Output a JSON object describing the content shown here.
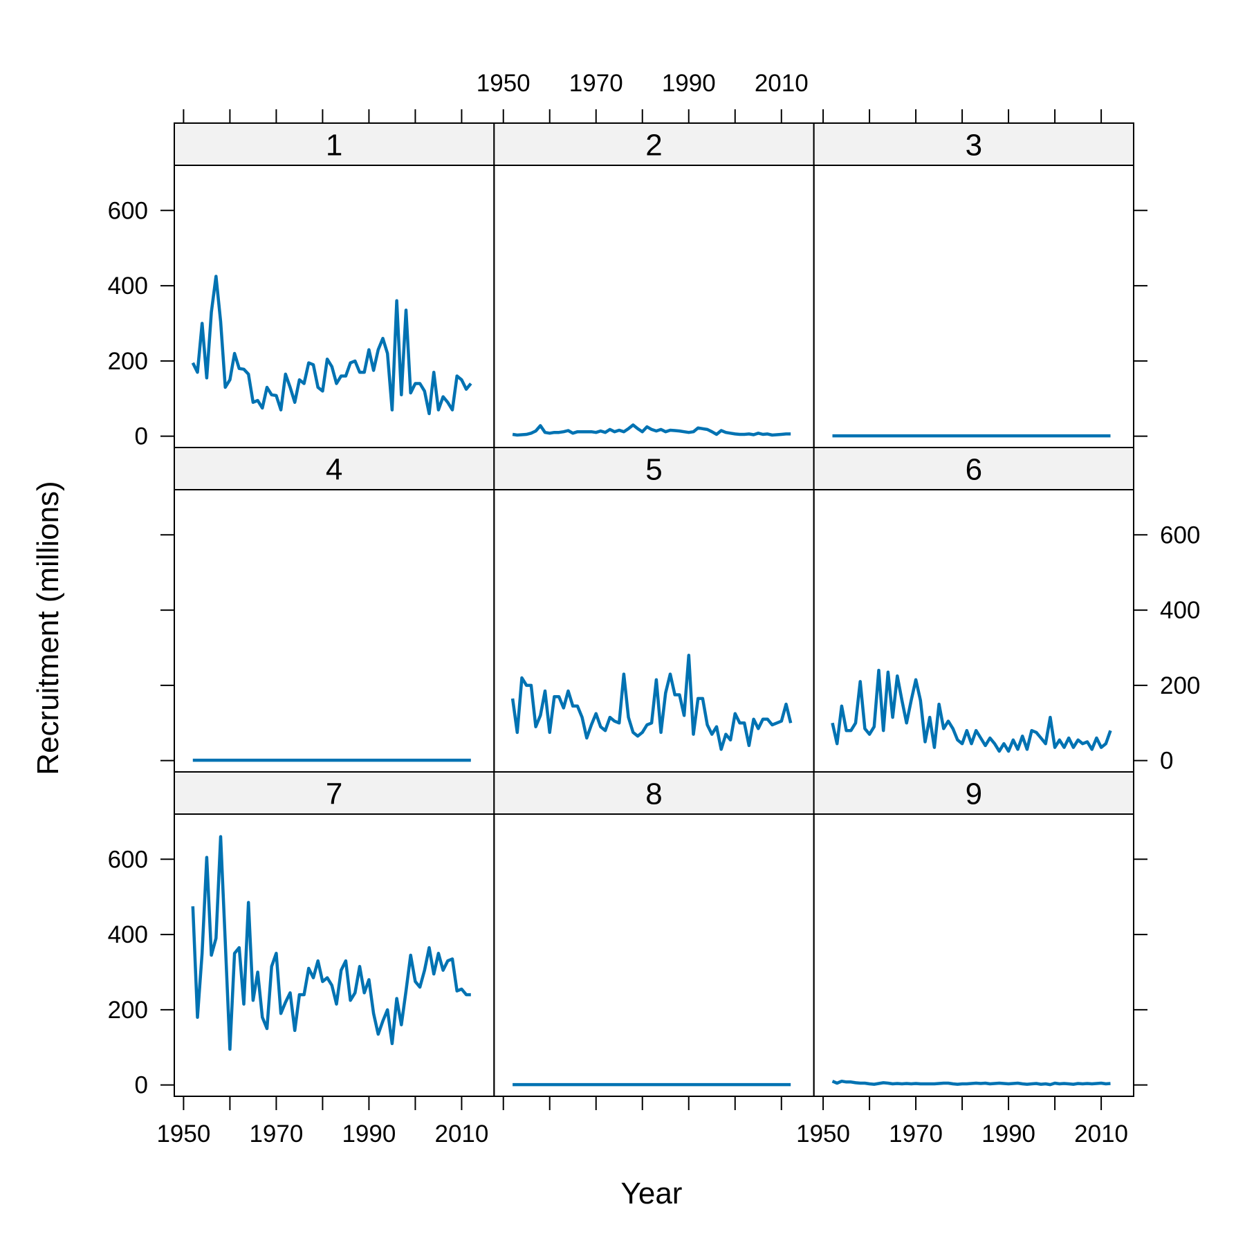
{
  "chart_data": {
    "type": "line",
    "layout": "3x3 lattice of panels",
    "xlabel": "Year",
    "ylabel": "Recruitment (millions)",
    "xlim": [
      1948,
      2017
    ],
    "ylim": [
      -30,
      720
    ],
    "x_ticks": [
      1950,
      1970,
      1990,
      2010
    ],
    "x_ticks_minor": [
      1950,
      1960,
      1970,
      1980,
      1990,
      2000,
      2010
    ],
    "y_ticks": [
      0,
      200,
      400,
      600
    ],
    "line_color": "#0072B2",
    "strip_color": "#f2f2f2",
    "x": [
      1952,
      1953,
      1954,
      1955,
      1956,
      1957,
      1958,
      1959,
      1960,
      1961,
      1962,
      1963,
      1964,
      1965,
      1966,
      1967,
      1968,
      1969,
      1970,
      1971,
      1972,
      1973,
      1974,
      1975,
      1976,
      1977,
      1978,
      1979,
      1980,
      1981,
      1982,
      1983,
      1984,
      1985,
      1986,
      1987,
      1988,
      1989,
      1990,
      1991,
      1992,
      1993,
      1994,
      1995,
      1996,
      1997,
      1998,
      1999,
      2000,
      2001,
      2002,
      2003,
      2004,
      2005,
      2006,
      2007,
      2008,
      2009,
      2010,
      2011,
      2012
    ],
    "panels": [
      {
        "label": "1",
        "values": [
          195,
          170,
          300,
          155,
          330,
          425,
          305,
          130,
          150,
          220,
          180,
          178,
          165,
          90,
          95,
          75,
          130,
          110,
          108,
          70,
          165,
          130,
          90,
          150,
          140,
          195,
          190,
          130,
          120,
          205,
          185,
          140,
          160,
          160,
          195,
          200,
          170,
          170,
          230,
          175,
          230,
          260,
          220,
          70,
          360,
          110,
          335,
          115,
          140,
          140,
          120,
          60,
          170,
          70,
          105,
          90,
          70,
          160,
          150,
          125,
          140
        ]
      },
      {
        "label": "2",
        "values": [
          5,
          3,
          4,
          5,
          8,
          14,
          28,
          10,
          8,
          10,
          10,
          12,
          15,
          8,
          12,
          12,
          12,
          12,
          10,
          14,
          10,
          18,
          12,
          16,
          12,
          20,
          30,
          20,
          12,
          25,
          18,
          14,
          18,
          12,
          16,
          15,
          14,
          12,
          10,
          12,
          22,
          20,
          18,
          12,
          5,
          15,
          10,
          8,
          6,
          5,
          5,
          6,
          4,
          8,
          5,
          6,
          3,
          4,
          5,
          6,
          6
        ]
      },
      {
        "label": "3",
        "values": [
          1,
          1,
          1,
          1,
          1,
          1,
          1,
          1,
          1,
          1,
          1,
          1,
          1,
          1,
          1,
          1,
          1,
          1,
          1,
          1,
          1,
          1,
          1,
          1,
          1,
          1,
          1,
          1,
          1,
          1,
          1,
          1,
          1,
          1,
          1,
          1,
          1,
          1,
          1,
          1,
          1,
          1,
          1,
          1,
          1,
          1,
          1,
          1,
          1,
          1,
          1,
          1,
          1,
          1,
          1,
          1,
          1,
          1,
          1,
          1,
          1
        ]
      },
      {
        "label": "4",
        "values": [
          1,
          1,
          1,
          1,
          1,
          1,
          1,
          1,
          1,
          1,
          1,
          1,
          1,
          1,
          1,
          1,
          1,
          1,
          1,
          1,
          1,
          1,
          1,
          1,
          1,
          1,
          1,
          1,
          1,
          1,
          1,
          1,
          1,
          1,
          1,
          1,
          1,
          1,
          1,
          1,
          1,
          1,
          1,
          1,
          1,
          1,
          1,
          1,
          1,
          1,
          1,
          1,
          1,
          1,
          1,
          1,
          1,
          1,
          1,
          1,
          1
        ]
      },
      {
        "label": "5",
        "values": [
          165,
          75,
          220,
          200,
          200,
          90,
          120,
          185,
          75,
          170,
          170,
          140,
          185,
          145,
          145,
          115,
          60,
          95,
          125,
          90,
          80,
          115,
          105,
          100,
          230,
          115,
          75,
          65,
          75,
          95,
          100,
          215,
          75,
          180,
          230,
          175,
          175,
          120,
          280,
          70,
          165,
          165,
          95,
          70,
          90,
          30,
          70,
          55,
          125,
          100,
          100,
          40,
          110,
          85,
          110,
          110,
          95,
          100,
          105,
          150,
          100
        ]
      },
      {
        "label": "6",
        "values": [
          100,
          45,
          145,
          80,
          80,
          100,
          210,
          85,
          70,
          90,
          240,
          80,
          235,
          115,
          225,
          160,
          100,
          160,
          215,
          160,
          50,
          115,
          35,
          150,
          85,
          105,
          85,
          55,
          45,
          80,
          45,
          80,
          60,
          40,
          60,
          45,
          25,
          45,
          25,
          55,
          30,
          65,
          30,
          80,
          75,
          60,
          45,
          115,
          35,
          55,
          35,
          60,
          35,
          55,
          45,
          50,
          30,
          60,
          35,
          45,
          80
        ]
      },
      {
        "label": "7",
        "values": [
          475,
          180,
          350,
          605,
          345,
          390,
          660,
          380,
          95,
          350,
          365,
          215,
          485,
          225,
          300,
          180,
          150,
          315,
          350,
          190,
          220,
          245,
          145,
          240,
          240,
          310,
          285,
          330,
          275,
          285,
          265,
          215,
          305,
          330,
          225,
          245,
          315,
          245,
          280,
          190,
          135,
          170,
          200,
          110,
          230,
          160,
          250,
          345,
          275,
          260,
          305,
          365,
          295,
          350,
          305,
          330,
          335,
          250,
          255,
          240,
          240
        ]
      },
      {
        "label": "8",
        "values": [
          1,
          1,
          1,
          1,
          1,
          1,
          1,
          1,
          1,
          1,
          1,
          1,
          1,
          1,
          1,
          1,
          1,
          1,
          1,
          1,
          1,
          1,
          1,
          1,
          1,
          1,
          1,
          1,
          1,
          1,
          1,
          1,
          1,
          1,
          1,
          1,
          1,
          1,
          1,
          1,
          1,
          1,
          1,
          1,
          1,
          1,
          1,
          1,
          1,
          1,
          1,
          1,
          1,
          1,
          1,
          1,
          1,
          1,
          1,
          1,
          1
        ]
      },
      {
        "label": "9",
        "values": [
          10,
          5,
          10,
          8,
          8,
          6,
          5,
          5,
          3,
          2,
          4,
          6,
          5,
          3,
          4,
          3,
          4,
          3,
          4,
          3,
          3,
          3,
          3,
          4,
          5,
          5,
          3,
          2,
          3,
          3,
          4,
          5,
          4,
          5,
          3,
          4,
          5,
          4,
          3,
          4,
          5,
          3,
          2,
          3,
          4,
          2,
          3,
          1,
          5,
          3,
          4,
          3,
          2,
          4,
          3,
          4,
          3,
          4,
          5,
          3,
          4
        ]
      }
    ]
  }
}
